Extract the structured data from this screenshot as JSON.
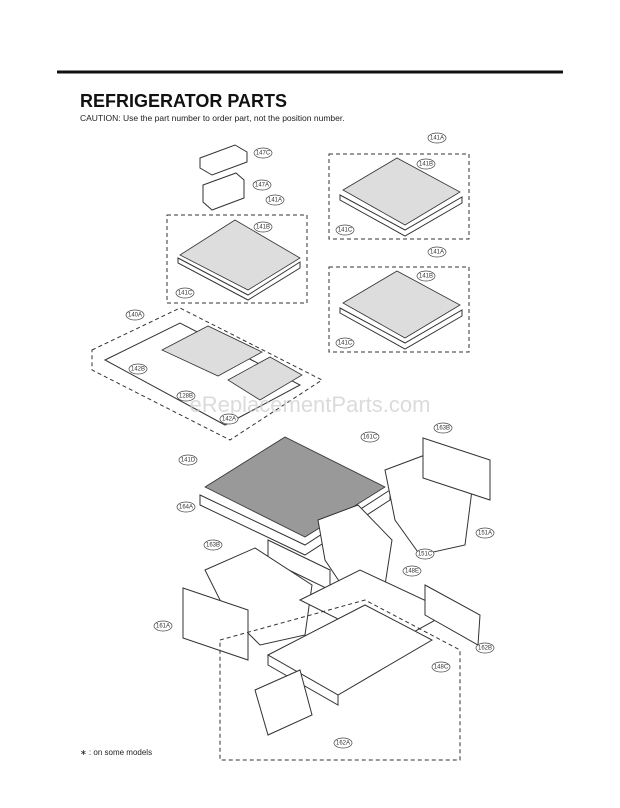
{
  "header": {
    "title": "REFRIGERATOR PARTS",
    "caution": "CAUTION: Use the part number to order part, not the position number."
  },
  "labels": [
    "147C",
    "147A",
    "141A",
    "141B",
    "141C",
    "141A",
    "141B",
    "141C",
    "141A",
    "141B",
    "141C",
    "140A",
    "142B",
    "128B",
    "142A",
    "161C",
    "163B",
    "141D",
    "164A",
    "151A",
    "151C",
    "148E",
    "163B",
    "161A",
    "162B",
    "148C",
    "162A"
  ],
  "watermark": "eReplacementParts.com",
  "footnote": "∗ : on some models"
}
